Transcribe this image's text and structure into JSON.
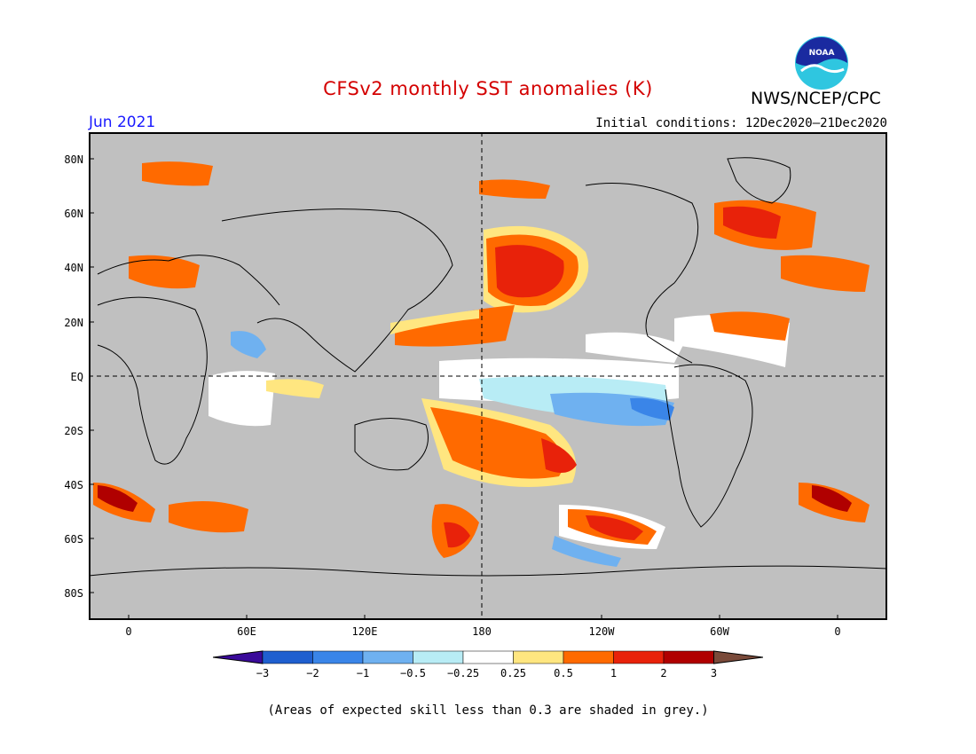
{
  "header": {
    "title": "CFSv2 monthly SST anomalies (K)",
    "agency": "NWS/NCEP/CPC",
    "month": "Jun 2021",
    "initial_conditions": "Initial conditions: 12Dec2020–21Dec2020"
  },
  "map": {
    "lat_labels": [
      "80N",
      "60N",
      "40N",
      "20N",
      "EQ",
      "20S",
      "40S",
      "60S",
      "80S"
    ],
    "lon_labels": [
      "0",
      "60E",
      "120E",
      "180",
      "120W",
      "60W",
      "0"
    ],
    "colors": {
      "land_grey": "#c0c0c0",
      "coast": "#000000",
      "title": "#d40000",
      "month": "#1a1aff"
    }
  },
  "colorbar": {
    "labels": [
      "−3",
      "−2",
      "−1",
      "−0.5",
      "−0.25",
      "0.25",
      "0.5",
      "1",
      "2",
      "3"
    ],
    "colors": [
      "#3a0a9a",
      "#1f5fcf",
      "#3a85e8",
      "#6fb1f0",
      "#b8ecf5",
      "#ffffff",
      "#ffe680",
      "#ff6a00",
      "#e8220a",
      "#b00000",
      "#7a4a3a"
    ]
  },
  "footnote": "(Areas of expected skill less than 0.3 are shaded in grey.)"
}
